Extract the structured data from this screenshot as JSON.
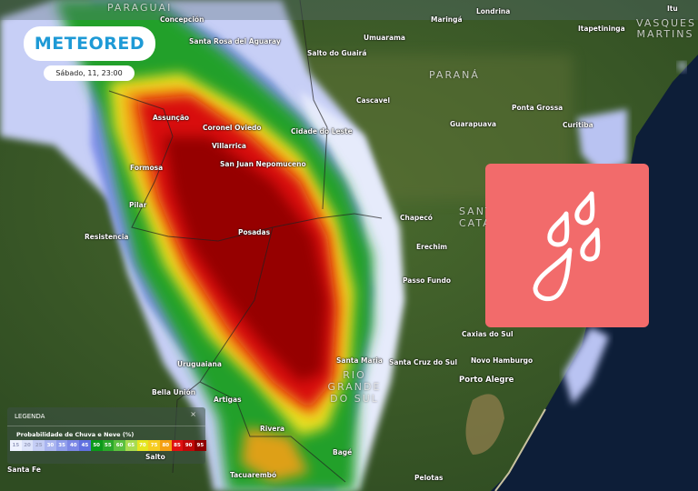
{
  "brand": {
    "logo_text": "METEORED",
    "date_label": "Sábado, 11, 23:00"
  },
  "map": {
    "region_labels": [
      "PARAGUAI",
      "PARANÁ",
      "SANTA CATARINA",
      "RIO GRANDE DO SUL",
      "VASQUES MARTINS"
    ],
    "cities": [
      "Concepción",
      "Santa Rosa del Aguaray",
      "Salto do Guairá",
      "Maringá",
      "Londrina",
      "Umuarama",
      "Itapetininga",
      "Itu",
      "Cascavel",
      "Ponta Grossa",
      "Guarapuava",
      "Curitiba",
      "Assunção",
      "Coronel Oviedo",
      "Villarrica",
      "Cidade do Leste",
      "San Juan Nepomuceno",
      "Formosa",
      "Pilar",
      "Posadas",
      "Resistencia",
      "Chapecó",
      "Erechim",
      "Passo Fundo",
      "Caxias do Sul",
      "Santa Maria",
      "Santa Cruz do Sul",
      "Novo Hamburgo",
      "Porto Alegre",
      "Uruguaiana",
      "Bella Unión",
      "Artigas",
      "Rivera",
      "Bagé",
      "Salto",
      "Santa Fe",
      "Tacuarembó",
      "Pelotas"
    ]
  },
  "card": {
    "icon": "rain-drops-icon",
    "color": "#f26b6b"
  },
  "legend": {
    "title": "LEGENDA",
    "close": "×",
    "subtitle": "Probabilidade de Chuva e Neve (%)",
    "values": [
      "15",
      "20",
      "25",
      "30",
      "35",
      "40",
      "45",
      "50",
      "55",
      "60",
      "65",
      "70",
      "75",
      "80",
      "85",
      "90",
      "95"
    ],
    "colors": [
      "#eef2ff",
      "#dce3fa",
      "#c4cdf5",
      "#aab5f0",
      "#909eec",
      "#7b87e6",
      "#6070e0",
      "#0a9a1a",
      "#2aa82a",
      "#5cc040",
      "#a8dc50",
      "#e6e61e",
      "#f6cc20",
      "#f5a012",
      "#e01010",
      "#c00808",
      "#8e0000"
    ]
  }
}
